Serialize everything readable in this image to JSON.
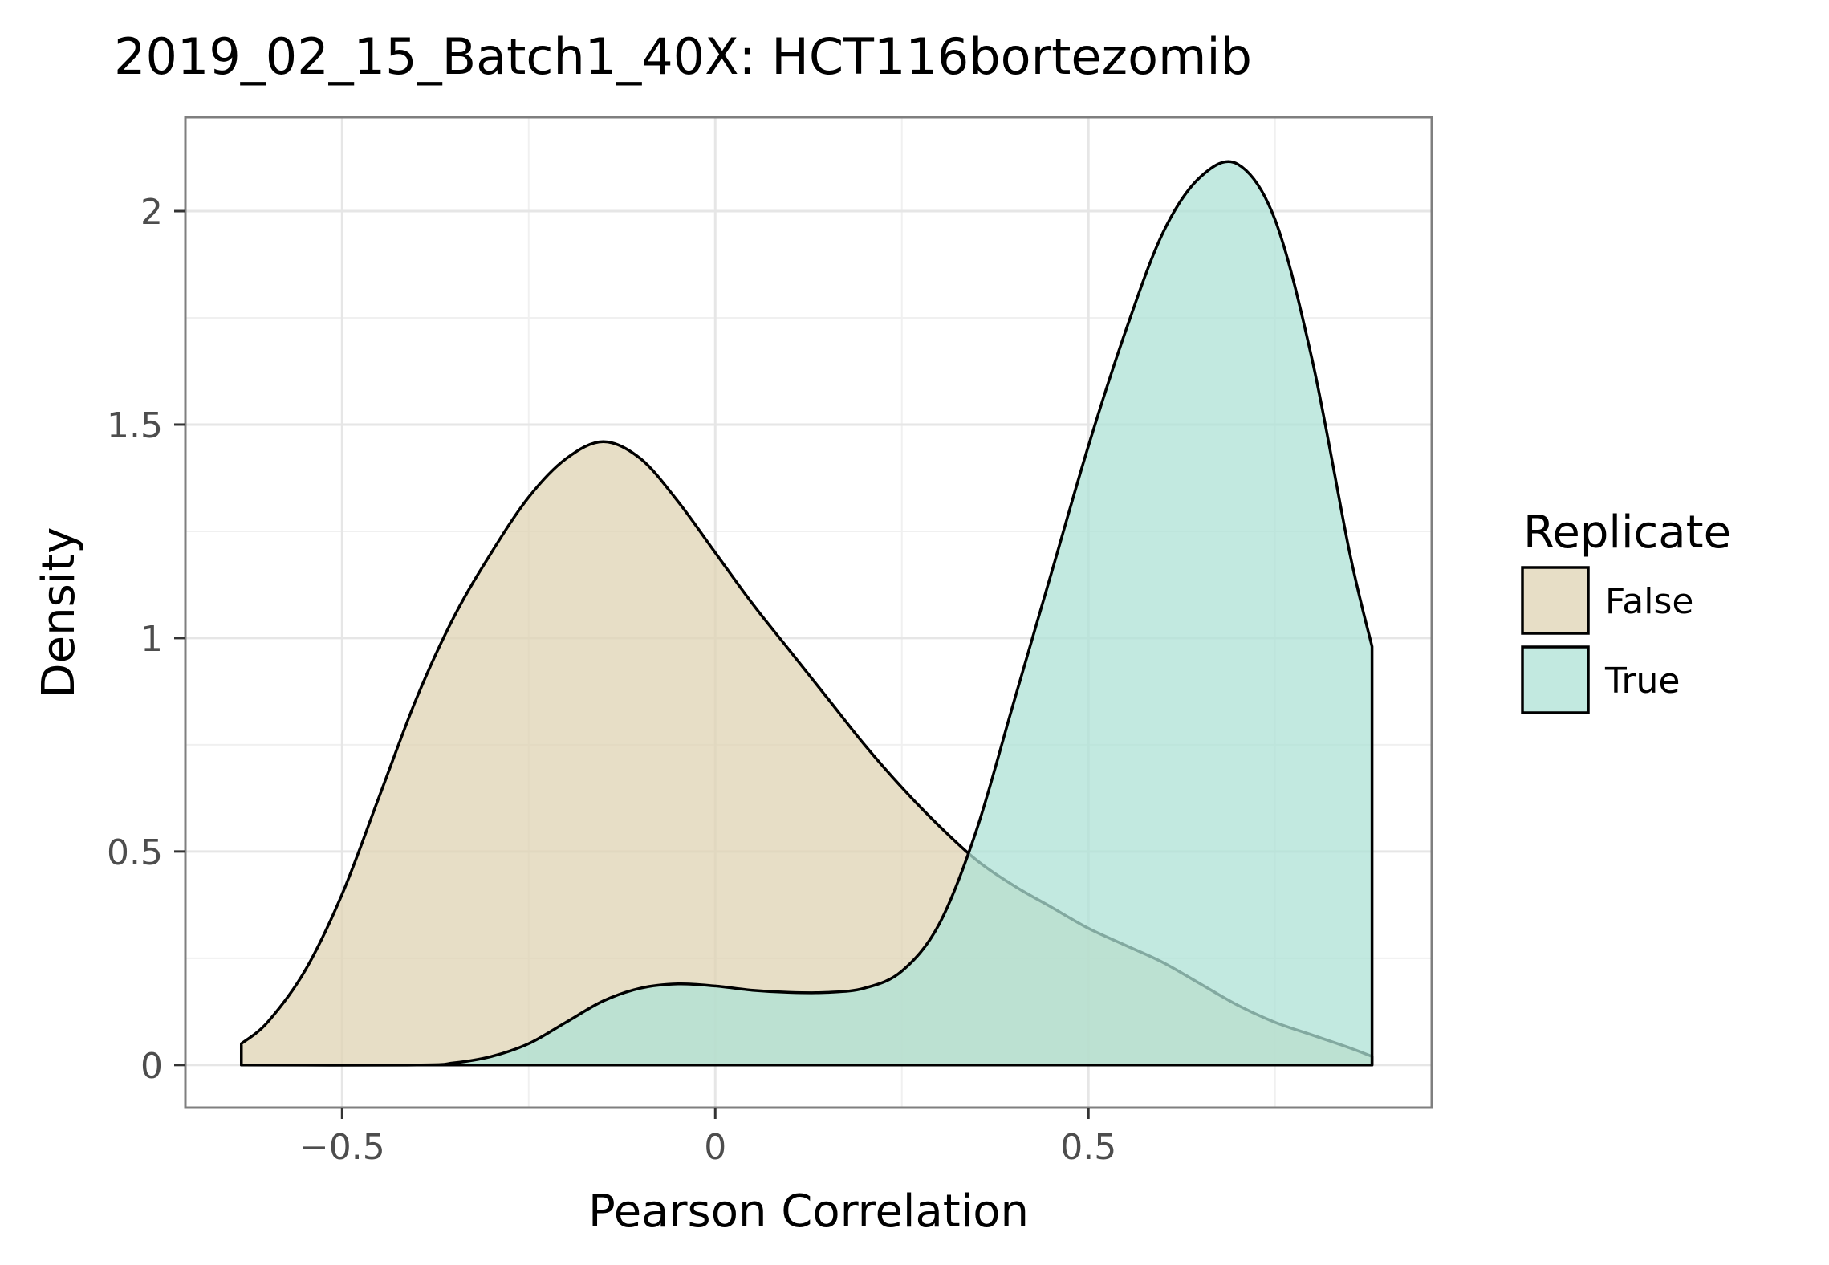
{
  "chart_data": {
    "type": "area",
    "title": "2019_02_15_Batch1_40X: HCT116bortezomib",
    "xlabel": "Pearson Correlation",
    "ylabel": "Density",
    "xlim": [
      -0.71,
      0.96
    ],
    "ylim": [
      -0.1,
      2.22
    ],
    "x_ticks": [
      {
        "value": -0.5,
        "label": "−0.5"
      },
      {
        "value": 0,
        "label": "0"
      },
      {
        "value": 0.5,
        "label": "0.5"
      }
    ],
    "y_ticks": [
      {
        "value": 0,
        "label": "0"
      },
      {
        "value": 0.5,
        "label": "0.5"
      },
      {
        "value": 1,
        "label": "1"
      },
      {
        "value": 1.5,
        "label": "1.5"
      },
      {
        "value": 2,
        "label": "2"
      }
    ],
    "grid": true,
    "legend": {
      "title": "Replicate",
      "position": "right"
    },
    "series": [
      {
        "name": "False",
        "color": "#dfd3b3",
        "x": [
          -0.635,
          -0.6,
          -0.55,
          -0.5,
          -0.45,
          -0.4,
          -0.35,
          -0.3,
          -0.25,
          -0.2,
          -0.15,
          -0.1,
          -0.05,
          0.0,
          0.05,
          0.1,
          0.15,
          0.2,
          0.25,
          0.3,
          0.35,
          0.4,
          0.45,
          0.5,
          0.55,
          0.6,
          0.65,
          0.7,
          0.75,
          0.8,
          0.85,
          0.88
        ],
        "values": [
          0.05,
          0.1,
          0.22,
          0.4,
          0.63,
          0.86,
          1.05,
          1.2,
          1.33,
          1.42,
          1.46,
          1.42,
          1.32,
          1.2,
          1.08,
          0.97,
          0.86,
          0.75,
          0.65,
          0.56,
          0.48,
          0.42,
          0.37,
          0.32,
          0.28,
          0.24,
          0.19,
          0.14,
          0.1,
          0.07,
          0.04,
          0.02
        ]
      },
      {
        "name": "True",
        "color": "#aee1d6",
        "x": [
          -0.635,
          -0.4,
          -0.35,
          -0.3,
          -0.25,
          -0.2,
          -0.15,
          -0.1,
          -0.05,
          0.0,
          0.05,
          0.1,
          0.15,
          0.2,
          0.25,
          0.3,
          0.35,
          0.4,
          0.45,
          0.5,
          0.55,
          0.6,
          0.65,
          0.7,
          0.75,
          0.8,
          0.85,
          0.88
        ],
        "values": [
          0.0,
          0.0,
          0.005,
          0.02,
          0.05,
          0.1,
          0.15,
          0.18,
          0.19,
          0.185,
          0.175,
          0.17,
          0.17,
          0.18,
          0.22,
          0.33,
          0.55,
          0.85,
          1.15,
          1.45,
          1.72,
          1.95,
          2.08,
          2.11,
          1.98,
          1.65,
          1.2,
          0.98
        ]
      }
    ]
  }
}
